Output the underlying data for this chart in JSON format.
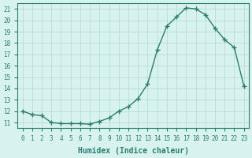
{
  "x": [
    0,
    1,
    2,
    3,
    4,
    5,
    6,
    7,
    8,
    9,
    10,
    11,
    12,
    13,
    14,
    15,
    16,
    17,
    18,
    19,
    20,
    21,
    22,
    23
  ],
  "y": [
    12.0,
    11.7,
    11.6,
    11.0,
    10.9,
    10.9,
    10.9,
    10.85,
    11.1,
    11.4,
    12.0,
    12.4,
    13.1,
    14.4,
    17.4,
    19.5,
    20.3,
    21.1,
    21.0,
    20.5,
    19.3,
    18.3,
    17.6,
    14.2
  ],
  "xlabel": "Humidex (Indice chaleur)",
  "xlim": [
    -0.5,
    23.5
  ],
  "ylim": [
    10.5,
    21.5
  ],
  "yticks": [
    11,
    12,
    13,
    14,
    15,
    16,
    17,
    18,
    19,
    20,
    21
  ],
  "xticks": [
    0,
    1,
    2,
    3,
    4,
    5,
    6,
    7,
    8,
    9,
    10,
    11,
    12,
    13,
    14,
    15,
    16,
    17,
    18,
    19,
    20,
    21,
    22,
    23
  ],
  "line_color": "#2d7d6e",
  "bg_color": "#d8f2f0",
  "grid_color": "#b0d8d4",
  "axis_color": "#2d7d6e",
  "tick_color": "#2d7d6e",
  "label_color": "#2d7d6e"
}
